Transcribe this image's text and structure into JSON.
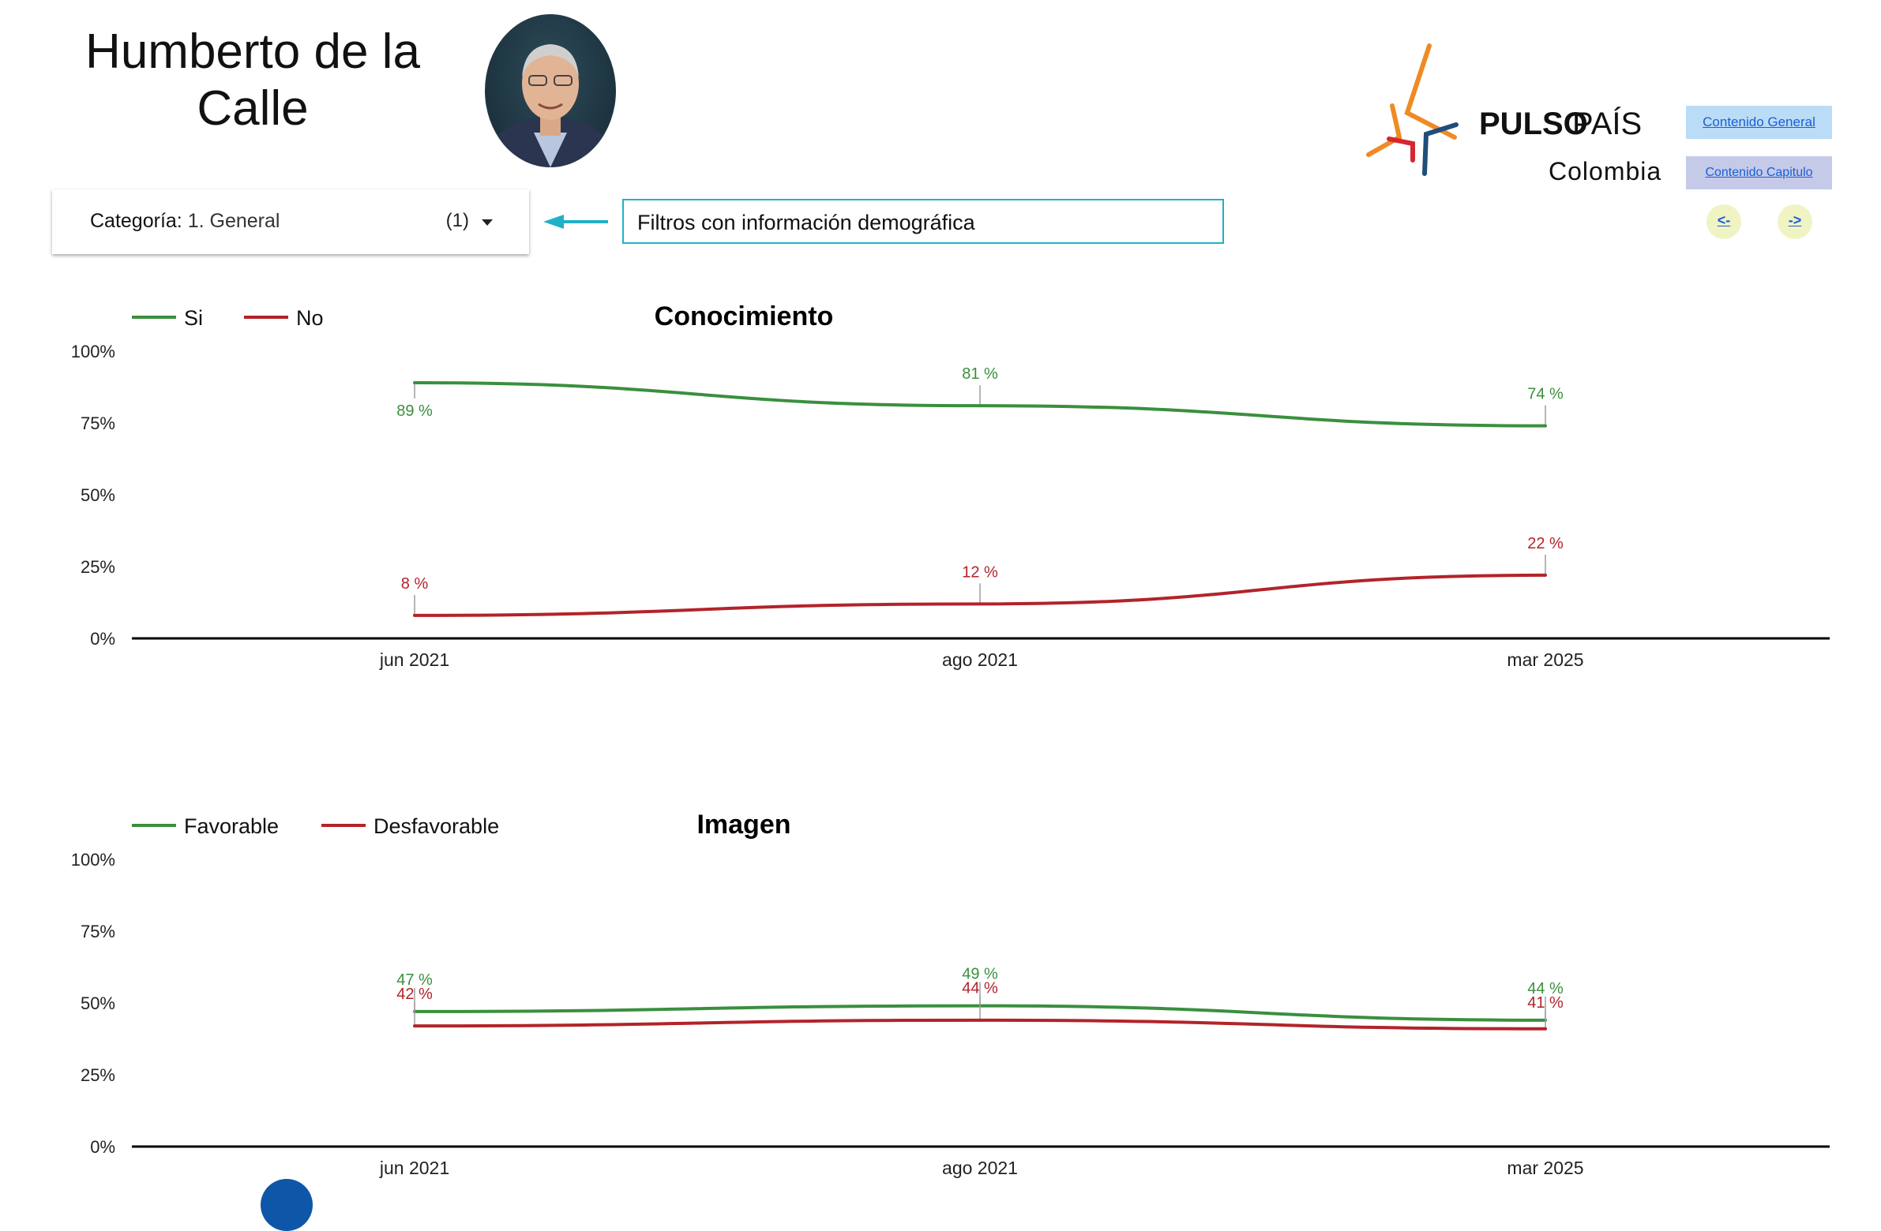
{
  "header": {
    "title_line1": "Humberto de la",
    "title_line2": "Calle",
    "photo_alt": "Humberto de la Calle"
  },
  "filter": {
    "label": "Categoría",
    "separator": ": ",
    "value": "1. General",
    "count": "(1)",
    "annotation": "Filtros con información demográfica"
  },
  "brand": {
    "name_bold": "PULSO",
    "name_light": "PAÍS",
    "subtitle": "Colombia",
    "colors": {
      "orange": "#f08a24",
      "red": "#d62730",
      "navy": "#1f4e79"
    }
  },
  "nav": {
    "general_label": "Contenido General",
    "capitulo_label": "Contenido Capitulo",
    "prev_label": "<-",
    "next_label": "->"
  },
  "colors": {
    "green": "#3a8f3e",
    "red": "#b3232a",
    "axis": "#000000",
    "leader": "#9e9e9e",
    "accent": "#20b1c7"
  },
  "chart_data": [
    {
      "type": "line",
      "title": "Conocimiento",
      "categories": [
        "jun 2021",
        "ago 2021",
        "mar 2025"
      ],
      "yticks": [
        "100%",
        "75%",
        "50%",
        "25%",
        "0%"
      ],
      "ylim": [
        0,
        100
      ],
      "legend": "top-left",
      "grid": false,
      "series": [
        {
          "name": "Si",
          "color": "#3a8f3e",
          "values": [
            89,
            81,
            74
          ],
          "labels": [
            "89 %",
            "81 %",
            "74 %"
          ],
          "label_pos": [
            "below",
            "above",
            "above"
          ]
        },
        {
          "name": "No",
          "color": "#b3232a",
          "values": [
            8,
            12,
            22
          ],
          "labels": [
            "8 %",
            "12 %",
            "22 %"
          ],
          "label_pos": [
            "above",
            "above",
            "above"
          ]
        }
      ]
    },
    {
      "type": "line",
      "title": "Imagen",
      "categories": [
        "jun 2021",
        "ago 2021",
        "mar 2025"
      ],
      "yticks": [
        "100%",
        "75%",
        "50%",
        "25%",
        "0%"
      ],
      "ylim": [
        0,
        100
      ],
      "legend": "top-left",
      "grid": false,
      "series": [
        {
          "name": "Favorable",
          "color": "#3a8f3e",
          "values": [
            47,
            49,
            44
          ],
          "labels": [
            "47 %",
            "49 %",
            "44 %"
          ],
          "label_pos": [
            "above",
            "above",
            "above"
          ]
        },
        {
          "name": "Desfavorable",
          "color": "#b3232a",
          "values": [
            42,
            44,
            41
          ],
          "labels": [
            "42 %",
            "44 %",
            "41 %"
          ],
          "label_pos": [
            "above",
            "above",
            "above"
          ]
        }
      ]
    }
  ]
}
